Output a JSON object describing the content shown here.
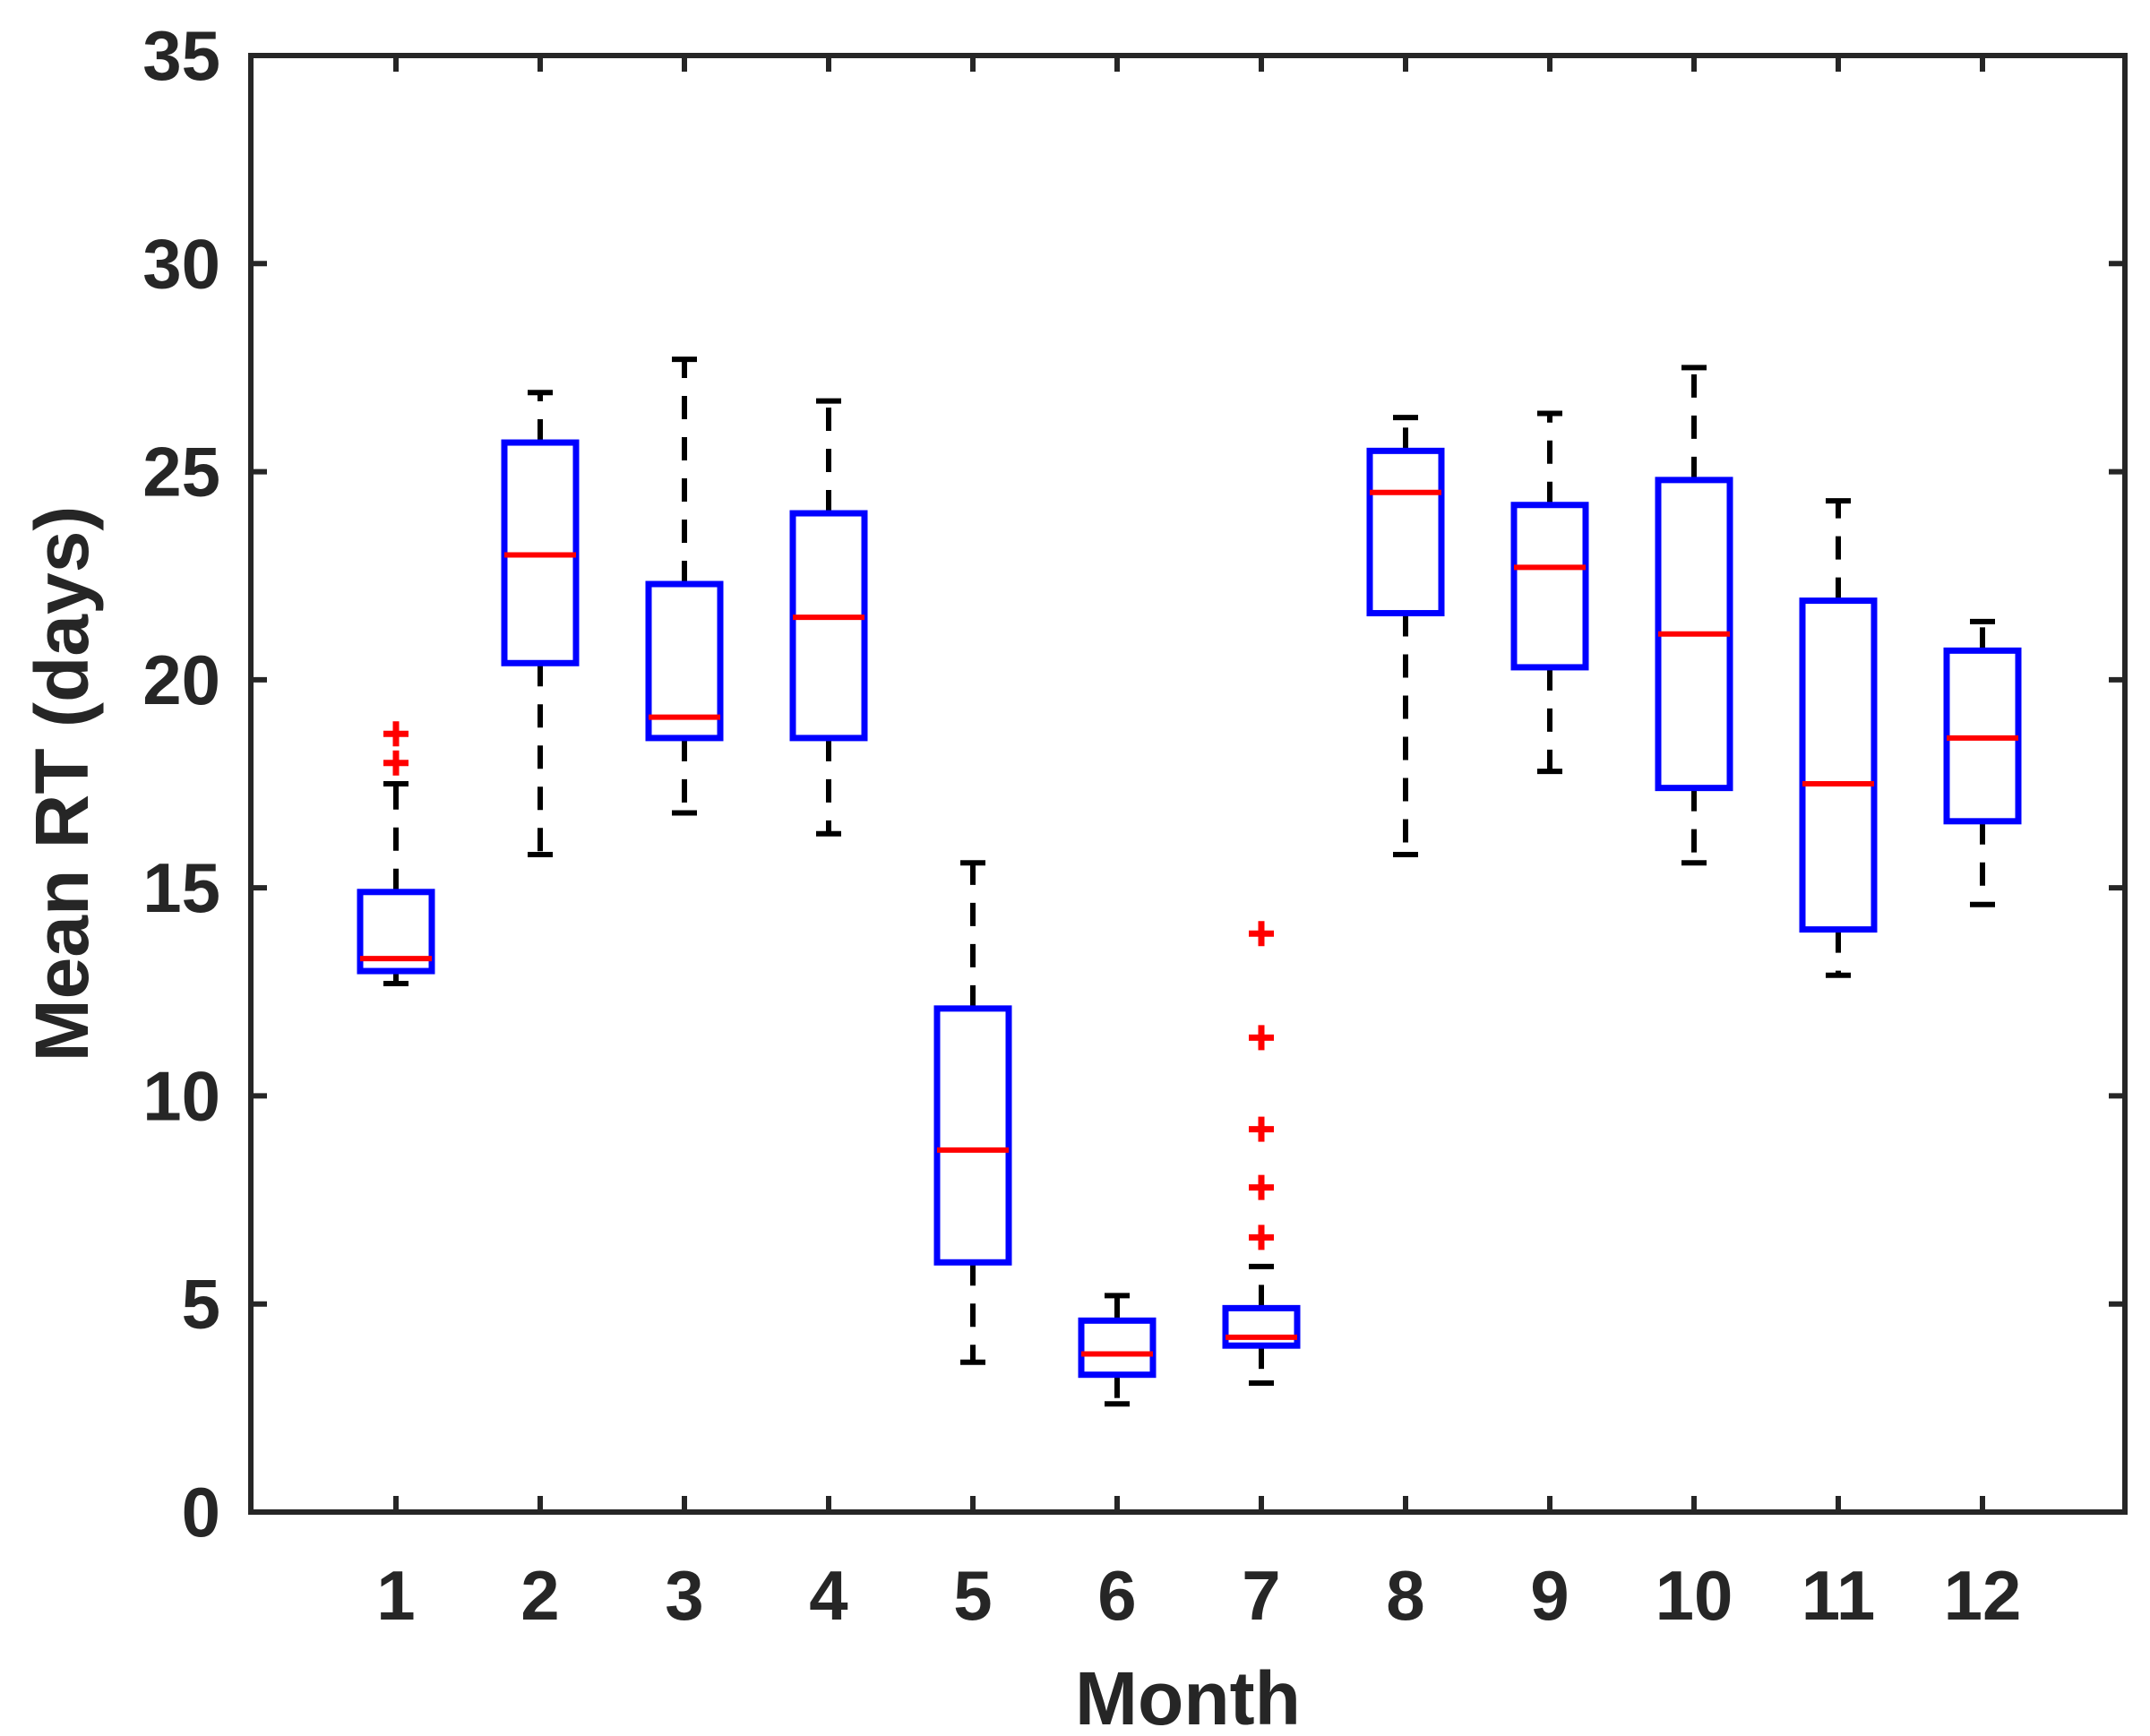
{
  "chart_data": {
    "type": "boxplot",
    "title": "",
    "xlabel": "Month",
    "ylabel": "Mean RT (days)",
    "ylim": [
      0,
      35
    ],
    "yticks": [
      "0",
      "5",
      "10",
      "15",
      "20",
      "25",
      "30",
      "35"
    ],
    "categories": [
      "1",
      "2",
      "3",
      "4",
      "5",
      "6",
      "7",
      "8",
      "9",
      "10",
      "11",
      "12"
    ],
    "boxes": [
      {
        "month": "1",
        "whisker_low": 12.7,
        "q1": 13.0,
        "median": 13.3,
        "q3": 14.9,
        "whisker_high": 17.5,
        "outliers": [
          18.0,
          18.7
        ]
      },
      {
        "month": "2",
        "whisker_low": 15.8,
        "q1": 20.4,
        "median": 23.0,
        "q3": 25.7,
        "whisker_high": 26.9,
        "outliers": []
      },
      {
        "month": "3",
        "whisker_low": 16.8,
        "q1": 18.6,
        "median": 19.1,
        "q3": 22.3,
        "whisker_high": 27.7,
        "outliers": []
      },
      {
        "month": "4",
        "whisker_low": 16.3,
        "q1": 18.6,
        "median": 21.5,
        "q3": 24.0,
        "whisker_high": 26.7,
        "outliers": []
      },
      {
        "month": "5",
        "whisker_low": 3.6,
        "q1": 6.0,
        "median": 8.7,
        "q3": 12.1,
        "whisker_high": 15.6,
        "outliers": []
      },
      {
        "month": "6",
        "whisker_low": 2.6,
        "q1": 3.3,
        "median": 3.8,
        "q3": 4.6,
        "whisker_high": 5.2,
        "outliers": []
      },
      {
        "month": "7",
        "whisker_low": 3.1,
        "q1": 4.0,
        "median": 4.2,
        "q3": 4.9,
        "whisker_high": 5.9,
        "outliers": [
          6.6,
          7.8,
          9.2,
          11.4,
          13.9
        ]
      },
      {
        "month": "8",
        "whisker_low": 15.8,
        "q1": 21.6,
        "median": 24.5,
        "q3": 25.5,
        "whisker_high": 26.3,
        "outliers": []
      },
      {
        "month": "9",
        "whisker_low": 17.8,
        "q1": 20.3,
        "median": 22.7,
        "q3": 24.2,
        "whisker_high": 26.4,
        "outliers": []
      },
      {
        "month": "10",
        "whisker_low": 15.6,
        "q1": 17.4,
        "median": 21.1,
        "q3": 24.8,
        "whisker_high": 27.5,
        "outliers": []
      },
      {
        "month": "11",
        "whisker_low": 12.9,
        "q1": 14.0,
        "median": 17.5,
        "q3": 21.9,
        "whisker_high": 24.3,
        "outliers": []
      },
      {
        "month": "12",
        "whisker_low": 14.6,
        "q1": 16.6,
        "median": 18.6,
        "q3": 20.7,
        "whisker_high": 21.4,
        "outliers": []
      }
    ],
    "grid": false,
    "legend": "none",
    "colors": {
      "box": "#0000ff",
      "median": "#ff0000",
      "whisker": "#000000",
      "outlier": "#ff0000",
      "axis": "#262626"
    }
  }
}
